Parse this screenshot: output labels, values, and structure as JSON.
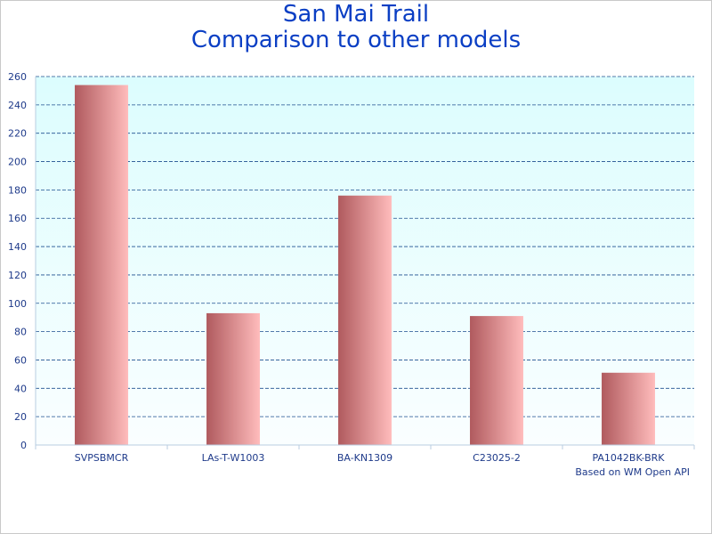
{
  "chart_data": {
    "type": "bar",
    "title_line1": "San Mai Trail",
    "title_line2": "Comparison to other models",
    "categories": [
      "SVPSBMCR",
      "LAs-T-W1003",
      "BA-KN1309",
      "C23025-2",
      "PA1042BK-BRK"
    ],
    "values": [
      254,
      93,
      176,
      91,
      51
    ],
    "ylim": [
      0,
      260
    ],
    "yticks": [
      0,
      20,
      40,
      60,
      80,
      100,
      120,
      140,
      160,
      180,
      200,
      220,
      240,
      260
    ],
    "grid": true,
    "colors": {
      "bar_dark": "#b05a5e",
      "bar_light": "#ffbcbc",
      "plot_bg_top": "#dcfdfe",
      "plot_bg_bottom": "#fafeff",
      "grid": "#1d4f8f",
      "axis": "#b8cde0",
      "text": "#1e3a8a",
      "title": "#0b3fc4"
    }
  },
  "footer": {
    "source": "Based on WM Open API"
  }
}
